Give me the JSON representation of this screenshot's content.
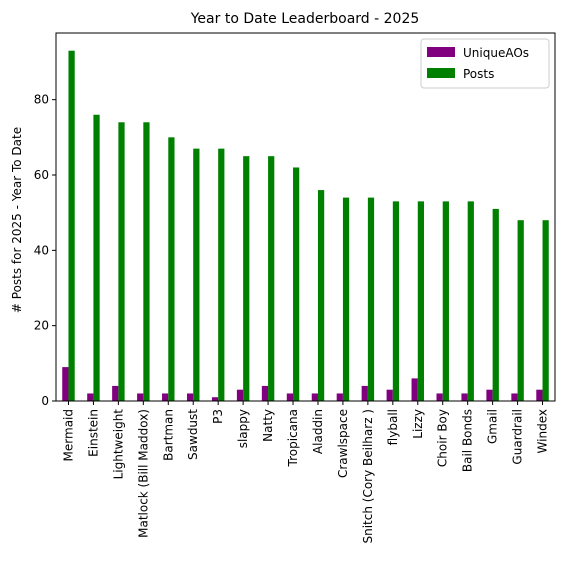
{
  "chart_data": {
    "type": "bar",
    "title": "Year to Date Leaderboard - 2025",
    "xlabel": "",
    "ylabel": "# Posts for 2025 - Year To Date",
    "ylim": [
      0,
      97.7
    ],
    "yticks": [
      0,
      20,
      40,
      60,
      80
    ],
    "grid": false,
    "legend": "top-right",
    "categories": [
      "Mermaid",
      "Einstein",
      "Lightweight",
      "Matlock (Bill Maddox)",
      "Bartman",
      "Sawdust",
      "P3",
      "slappy",
      "Natty",
      "Tropicana",
      "Aladdin",
      "Crawlspace",
      "Snitch (Cory Beilharz )",
      "flyball",
      "Lizzy",
      "Choir Boy",
      "Bail Bonds",
      "Gmail",
      "Guardrail",
      "Windex"
    ],
    "series": [
      {
        "name": "UniqueAOs",
        "color": "#800080",
        "values": [
          9,
          2,
          4,
          2,
          2,
          2,
          1,
          3,
          4,
          2,
          2,
          2,
          4,
          3,
          6,
          2,
          2,
          3,
          2,
          3
        ]
      },
      {
        "name": "Posts",
        "color": "#008000",
        "values": [
          93,
          76,
          74,
          74,
          70,
          67,
          67,
          65,
          65,
          62,
          56,
          54,
          54,
          53,
          53,
          53,
          53,
          51,
          48,
          48
        ]
      }
    ]
  }
}
